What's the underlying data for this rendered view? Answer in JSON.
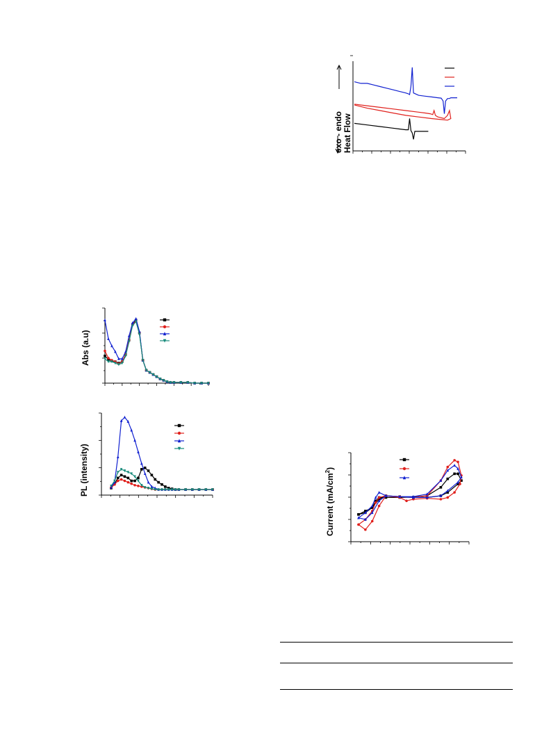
{
  "figures": {
    "dsc": {
      "ylabel_top": "exo - endo",
      "ylabel_bottom": "Heat Flow",
      "colors": [
        "#000000",
        "#e0201c",
        "#1020d0"
      ]
    },
    "abs": {
      "ylabel": "Abs (a.u)",
      "colors": [
        "#000000",
        "#e0201c",
        "#1020d0",
        "#168a7a"
      ]
    },
    "pl": {
      "ylabel": "PL (intensity)",
      "colors": [
        "#000000",
        "#e0201c",
        "#1020d0",
        "#168a7a"
      ]
    },
    "cv": {
      "ylabel": "Current (mA/cm",
      "ylabel_sup": "2",
      "ylabel_end": ")",
      "colors": [
        "#000000",
        "#e0201c",
        "#1020d0"
      ]
    }
  },
  "chart_data": [
    {
      "type": "line",
      "series": [
        {
          "color": "#1020d0",
          "x": [
            0,
            10,
            20,
            30,
            40,
            50,
            60,
            70,
            80,
            84,
            86,
            88,
            90,
            92,
            100,
            110,
            120,
            130,
            135,
            138,
            140,
            142,
            145,
            148,
            150,
            152,
            155,
            160
          ],
          "y": [
            3.3,
            3.2,
            3.2,
            3.1,
            3.0,
            2.9,
            2.8,
            2.7,
            2.6,
            2.55,
            2.5,
            3.0,
            4.2,
            2.6,
            2.45,
            2.4,
            2.35,
            2.3,
            2.28,
            2.1,
            1.3,
            2.1,
            2.25,
            2.25,
            2.3,
            2.3,
            2.3,
            2.3
          ]
        },
        {
          "color": "#e0201c",
          "x": [
            0,
            20,
            40,
            60,
            80,
            100,
            110,
            118,
            122,
            124,
            126,
            128,
            130,
            135,
            140,
            145,
            148,
            150,
            145,
            120,
            100,
            80,
            60,
            40,
            20,
            0
          ],
          "y": [
            1.9,
            1.8,
            1.7,
            1.6,
            1.5,
            1.4,
            1.35,
            1.3,
            1.25,
            1.5,
            1.2,
            1.15,
            1.1,
            1.05,
            1.0,
            1.2,
            1.5,
            1.0,
            0.9,
            1.0,
            1.1,
            1.2,
            1.35,
            1.5,
            1.65,
            1.85
          ]
        },
        {
          "color": "#000000",
          "x": [
            0,
            20,
            40,
            60,
            70,
            80,
            84,
            86,
            88,
            90,
            92,
            94,
            100,
            110,
            115
          ],
          "y": [
            0.7,
            0.6,
            0.5,
            0.4,
            0.35,
            0.3,
            0.3,
            1.0,
            0.25,
            0.1,
            -0.3,
            0.2,
            0.2,
            0.2,
            0.2
          ]
        }
      ]
    },
    {
      "type": "line",
      "x": [
        0,
        5,
        10,
        15,
        20,
        25,
        30,
        35,
        40,
        45,
        50,
        55,
        60,
        65,
        70,
        75,
        80,
        85,
        90,
        95,
        100,
        110,
        120,
        130,
        140,
        150
      ],
      "series": [
        {
          "color": "#000000",
          "values": [
            0.38,
            0.33,
            0.31,
            0.3,
            0.28,
            0.3,
            0.4,
            0.6,
            0.82,
            0.88,
            0.7,
            0.32,
            0.18,
            0.15,
            0.12,
            0.09,
            0.06,
            0.04,
            0.02,
            0.01,
            0.01,
            0.01,
            0.01,
            0.0,
            0.0,
            0.0
          ]
        },
        {
          "color": "#e0201c",
          "values": [
            0.45,
            0.35,
            0.32,
            0.3,
            0.27,
            0.3,
            0.4,
            0.6,
            0.82,
            0.86,
            0.7,
            0.32,
            0.18,
            0.15,
            0.12,
            0.09,
            0.06,
            0.04,
            0.02,
            0.01,
            0.01,
            0.01,
            0.01,
            0.0,
            0.0,
            0.0
          ]
        },
        {
          "color": "#1020d0",
          "values": [
            0.88,
            0.62,
            0.52,
            0.44,
            0.34,
            0.34,
            0.44,
            0.66,
            0.84,
            0.9,
            0.72,
            0.32,
            0.18,
            0.15,
            0.12,
            0.09,
            0.06,
            0.04,
            0.02,
            0.01,
            0.01,
            0.01,
            0.01,
            0.0,
            0.0,
            0.0
          ]
        },
        {
          "color": "#168a7a",
          "values": [
            0.34,
            0.3,
            0.3,
            0.28,
            0.26,
            0.28,
            0.38,
            0.58,
            0.8,
            0.86,
            0.68,
            0.32,
            0.18,
            0.15,
            0.12,
            0.09,
            0.06,
            0.04,
            0.02,
            0.01,
            0.01,
            0.01,
            0.01,
            0.0,
            0.0,
            0.0
          ]
        }
      ]
    },
    {
      "type": "line",
      "x": [
        0,
        5,
        10,
        15,
        20,
        25,
        30,
        35,
        40,
        45,
        50,
        55,
        60,
        65,
        70,
        75,
        80,
        85,
        90,
        95,
        100,
        110,
        120,
        130,
        140,
        150
      ],
      "series": [
        {
          "color": "#000000",
          "values": [
            0.02,
            0.08,
            0.16,
            0.2,
            0.18,
            0.16,
            0.12,
            0.12,
            0.16,
            0.28,
            0.3,
            0.26,
            0.2,
            0.14,
            0.1,
            0.07,
            0.04,
            0.02,
            0.01,
            0.0,
            0.0,
            0.0,
            0.0,
            0.0,
            0.0,
            0.0
          ]
        },
        {
          "color": "#e0201c",
          "values": [
            0.03,
            0.07,
            0.12,
            0.14,
            0.12,
            0.1,
            0.08,
            0.06,
            0.05,
            0.04,
            0.03,
            0.02,
            0.01,
            0.0,
            0.0,
            0.0,
            0.0,
            0.0,
            0.0,
            0.0,
            0.0,
            0.0,
            0.0,
            0.0,
            0.0,
            0.0
          ]
        },
        {
          "color": "#1020d0",
          "values": [
            0.03,
            0.1,
            0.45,
            0.95,
            1.0,
            0.94,
            0.82,
            0.68,
            0.52,
            0.36,
            0.22,
            0.1,
            0.04,
            0.02,
            0.0,
            0.0,
            0.0,
            0.0,
            0.0,
            0.0,
            0.0,
            0.0,
            0.0,
            0.0,
            0.0,
            0.0
          ]
        },
        {
          "color": "#168a7a",
          "values": [
            0.05,
            0.12,
            0.24,
            0.28,
            0.26,
            0.24,
            0.22,
            0.18,
            0.12,
            0.06,
            0.03,
            0.02,
            0.01,
            0.0,
            0.0,
            0.0,
            0.0,
            0.0,
            0.0,
            0.0,
            0.0,
            0.0,
            0.0,
            0.0,
            0.0,
            0.0
          ]
        }
      ]
    },
    {
      "type": "line",
      "series": [
        {
          "color": "#000000",
          "x": [
            0,
            10,
            20,
            25,
            30,
            40,
            60,
            80,
            100,
            120,
            130,
            140,
            145,
            150,
            145,
            130,
            120,
            100,
            80,
            60,
            40,
            30,
            20,
            10,
            0
          ],
          "y": [
            -1.0,
            -0.8,
            -0.6,
            -0.2,
            0.0,
            0.0,
            0.0,
            0.02,
            0.1,
            0.6,
            1.1,
            1.4,
            1.4,
            1.0,
            0.8,
            0.3,
            0.1,
            0.0,
            0.0,
            0.05,
            0.1,
            -0.1,
            -0.6,
            -0.9,
            -1.0
          ]
        },
        {
          "color": "#e0201c",
          "x": [
            0,
            10,
            20,
            25,
            30,
            40,
            60,
            80,
            100,
            120,
            130,
            140,
            145,
            150,
            148,
            140,
            130,
            120,
            100,
            80,
            70,
            60,
            40,
            30,
            20,
            10,
            0
          ],
          "y": [
            -1.6,
            -1.3,
            -0.8,
            -0.3,
            0.0,
            0.1,
            0.05,
            0.0,
            0.1,
            1.0,
            1.8,
            2.2,
            2.1,
            1.3,
            0.8,
            0.3,
            0.0,
            -0.1,
            -0.05,
            -0.1,
            -0.2,
            0.0,
            0.1,
            -0.5,
            -1.4,
            -1.9,
            -1.6
          ]
        },
        {
          "color": "#1020d0",
          "x": [
            0,
            10,
            20,
            25,
            30,
            40,
            60,
            80,
            100,
            120,
            130,
            140,
            145,
            150,
            145,
            130,
            120,
            100,
            80,
            60,
            40,
            30,
            20,
            10,
            0
          ],
          "y": [
            -1.2,
            -0.9,
            -0.5,
            0.0,
            0.3,
            0.1,
            0.05,
            0.05,
            0.2,
            1.0,
            1.6,
            1.9,
            1.7,
            1.2,
            0.9,
            0.4,
            0.1,
            0.0,
            0.0,
            0.05,
            0.1,
            -0.2,
            -0.9,
            -1.3,
            -1.2
          ]
        }
      ]
    }
  ]
}
